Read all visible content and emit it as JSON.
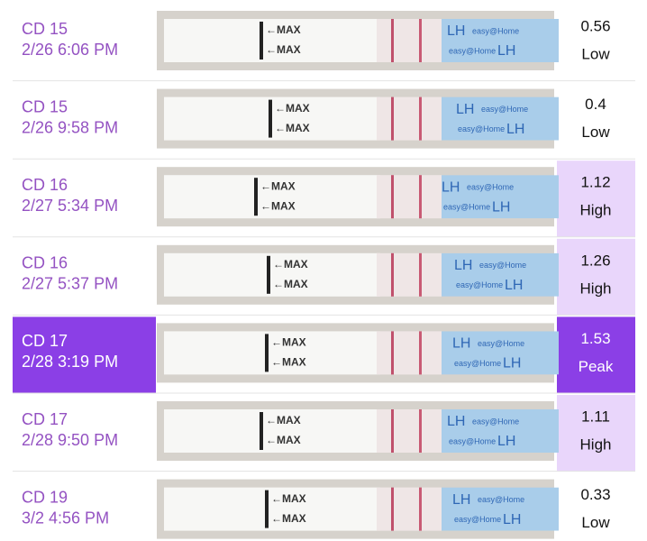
{
  "rows": [
    {
      "cycle_day": "CD 15",
      "datetime": "2/26 6:06 PM",
      "value": 0.56,
      "level": "Low",
      "selected": false
    },
    {
      "cycle_day": "CD 15",
      "datetime": "2/26 9:58 PM",
      "value": 0.4,
      "level": "Low",
      "selected": false
    },
    {
      "cycle_day": "CD 16",
      "datetime": "2/27 5:34 PM",
      "value": 1.12,
      "level": "High",
      "selected": false
    },
    {
      "cycle_day": "CD 16",
      "datetime": "2/27 5:37 PM",
      "value": 1.26,
      "level": "High",
      "selected": false
    },
    {
      "cycle_day": "CD 17",
      "datetime": "2/28 3:19 PM",
      "value": 1.53,
      "level": "Peak",
      "selected": true
    },
    {
      "cycle_day": "CD 17",
      "datetime": "2/28 9:50 PM",
      "value": 1.11,
      "level": "High",
      "selected": false
    },
    {
      "cycle_day": "CD 19",
      "datetime": "3/2 4:56 PM",
      "value": 0.33,
      "level": "Low",
      "selected": false
    }
  ],
  "strip": {
    "max_label": "←MAX",
    "lh": "LH",
    "brand": "easy@Home"
  }
}
